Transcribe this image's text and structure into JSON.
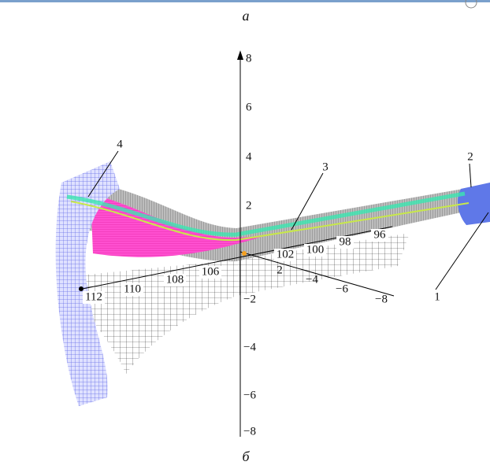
{
  "caption_top": "а",
  "caption_bottom": "б",
  "vertical_axis": {
    "ticks": [
      "8",
      "6",
      "4",
      "2",
      "−2",
      "−4",
      "−6",
      "−8"
    ]
  },
  "depth_axis": {
    "ticks": [
      "112",
      "110",
      "108",
      "106",
      "102",
      "100",
      "98",
      "96"
    ]
  },
  "side_axis": {
    "ticks": [
      "2",
      "−4",
      "−6",
      "−8"
    ]
  },
  "callouts": [
    "1",
    "2",
    "3",
    "4"
  ]
}
